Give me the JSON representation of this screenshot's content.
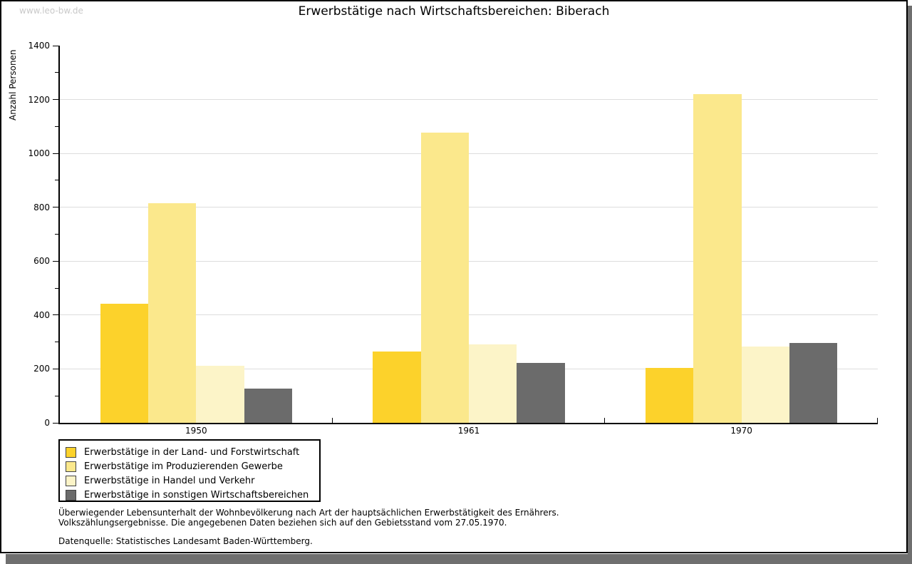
{
  "page": {
    "watermark": "www.leo-bw.de",
    "title": "Erwerbstätige nach Wirtschaftsbereichen: Biberach"
  },
  "chart_data": {
    "type": "bar",
    "title": "Erwerbstätige nach Wirtschaftsbereichen: Biberach",
    "xlabel": "",
    "ylabel": "Anzahl Personen",
    "ylim": [
      0,
      1400
    ],
    "ytick_step": 200,
    "yminor_step": 100,
    "grid": true,
    "legend_position": "bottom-left",
    "categories": [
      "1950",
      "1961",
      "1970"
    ],
    "series": [
      {
        "name": "Erwerbstätige in der Land- und Forstwirtschaft",
        "color": "#FCD22B",
        "values": [
          442,
          265,
          203
        ]
      },
      {
        "name": "Erwerbstätige im Produzierenden Gewerbe",
        "color": "#FBE88C",
        "values": [
          815,
          1078,
          1220
        ]
      },
      {
        "name": "Erwerbstätige in Handel und Verkehr",
        "color": "#FCF4C8",
        "values": [
          212,
          291,
          283
        ]
      },
      {
        "name": "Erwerbstätige in sonstigen Wirtschaftsbereichen",
        "color": "#6B6B6B",
        "values": [
          128,
          222,
          297
        ]
      }
    ]
  },
  "footnotes": {
    "line1": "Überwiegender Lebensunterhalt der Wohnbevölkerung nach Art der hauptsächlichen Erwerbstätigkeit des Ernährers.",
    "line2": "Volkszählungsergebnisse. Die angegebenen Daten beziehen sich auf den Gebietsstand vom 27.05.1970.",
    "source": "Datenquelle: Statistisches Landesamt Baden-Württemberg."
  }
}
